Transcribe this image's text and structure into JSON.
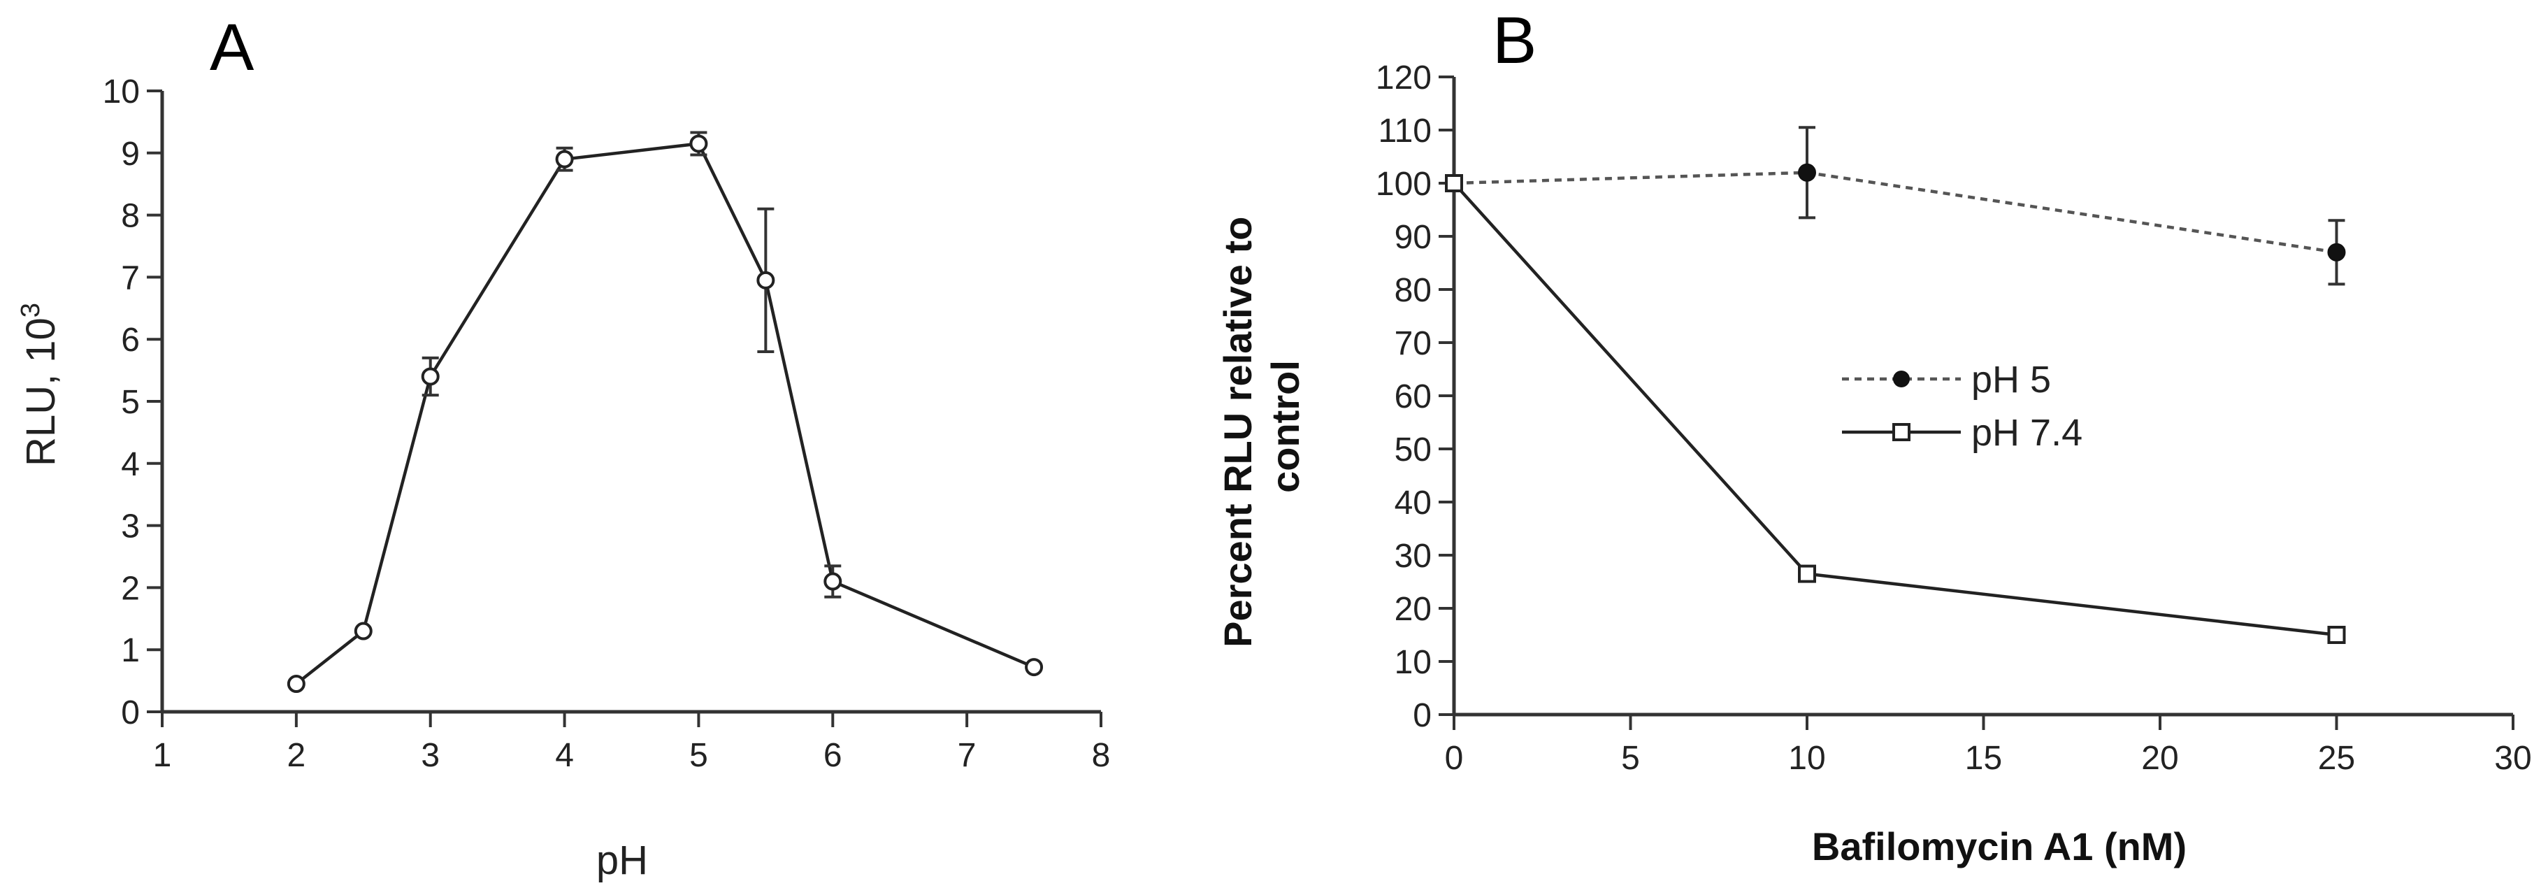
{
  "figure": {
    "panels": [
      {
        "letter": "A"
      },
      {
        "letter": "B"
      }
    ]
  },
  "chart_data": [
    {
      "type": "line",
      "panel": "A",
      "title": "",
      "xlabel": "pH",
      "ylabel": "RLU, 10",
      "ylabel_superscript": "3",
      "xlim": [
        1,
        8
      ],
      "ylim": [
        0,
        10
      ],
      "x_ticks": [
        1,
        2,
        3,
        4,
        5,
        6,
        7,
        8
      ],
      "y_ticks": [
        0,
        1,
        2,
        3,
        4,
        5,
        6,
        7,
        8,
        9,
        10
      ],
      "grid": false,
      "series": [
        {
          "marker": "open-circle",
          "line": "solid",
          "x": [
            2,
            2.5,
            3,
            4,
            5,
            5.5,
            6,
            7.5
          ],
          "y": [
            0.45,
            1.3,
            5.4,
            8.9,
            9.15,
            6.95,
            2.1,
            0.72
          ],
          "err": [
            0,
            0,
            0.3,
            0.18,
            0.18,
            1.15,
            0.25,
            0
          ]
        }
      ]
    },
    {
      "type": "line",
      "panel": "B",
      "title": "",
      "xlabel": "Bafilomycin A1 (nM)",
      "ylabel_lines": [
        "Percent RLU relative to",
        "control"
      ],
      "xlim": [
        0,
        30
      ],
      "ylim": [
        0,
        120
      ],
      "x_ticks": [
        0,
        5,
        10,
        15,
        20,
        25,
        30
      ],
      "y_ticks": [
        0,
        10,
        20,
        30,
        40,
        50,
        60,
        70,
        80,
        90,
        100,
        110,
        120
      ],
      "grid": false,
      "legend_position": "center",
      "series": [
        {
          "name": "pH 5",
          "marker": "filled-circle",
          "line": "dashed",
          "x": [
            0,
            10,
            25
          ],
          "y": [
            100,
            102,
            87
          ],
          "err": [
            0,
            8.5,
            6
          ]
        },
        {
          "name": "pH 7.4",
          "marker": "open-square",
          "line": "solid",
          "x": [
            0,
            10,
            25
          ],
          "y": [
            100,
            26.5,
            15
          ],
          "err": [
            0,
            0,
            0
          ]
        }
      ]
    }
  ]
}
